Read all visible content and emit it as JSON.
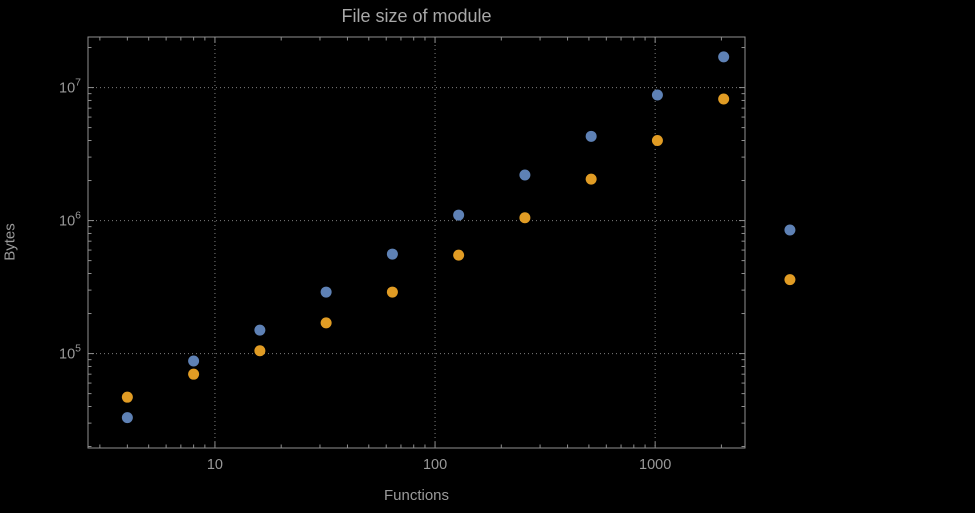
{
  "chart_data": {
    "type": "scatter",
    "title": "File size of module",
    "xlabel": "Functions",
    "ylabel": "Bytes",
    "x_scale": "log",
    "y_scale": "log",
    "grid": "dotted-at-major-ticks",
    "legend": "none",
    "x_ticks": [
      {
        "label": "10",
        "value": 10
      },
      {
        "label": "100",
        "value": 100
      },
      {
        "label": "1000",
        "value": 1000
      }
    ],
    "y_ticks": [
      {
        "base": "10",
        "exp": "5",
        "value": 100000
      },
      {
        "base": "10",
        "exp": "6",
        "value": 1000000
      },
      {
        "base": "10",
        "exp": "7",
        "value": 10000000
      }
    ],
    "xlim": [
      2.65,
      2560
    ],
    "ylim": [
      19500,
      24000000
    ],
    "series": [
      {
        "name": "series-blue",
        "color": "#5e81b5",
        "points": [
          [
            4,
            33000
          ],
          [
            8,
            88000
          ],
          [
            16,
            150000
          ],
          [
            32,
            290000
          ],
          [
            64,
            560000
          ],
          [
            128,
            1100000
          ],
          [
            256,
            2200000
          ],
          [
            512,
            4300000
          ],
          [
            1024,
            8800000
          ],
          [
            2048,
            17000000
          ],
          [
            4096,
            850000
          ]
        ]
      },
      {
        "name": "series-orange",
        "color": "#e19c24",
        "points": [
          [
            4,
            47000
          ],
          [
            8,
            70000
          ],
          [
            16,
            105000
          ],
          [
            32,
            170000
          ],
          [
            64,
            290000
          ],
          [
            128,
            550000
          ],
          [
            256,
            1050000
          ],
          [
            512,
            2050000
          ],
          [
            1024,
            4000000
          ],
          [
            2048,
            8200000
          ],
          [
            4096,
            360000
          ]
        ]
      }
    ],
    "colors": {
      "background": "#000000",
      "frame": "#8f8f8f",
      "grid": "#7d7d7d",
      "tick_text": "#999999",
      "title_text": "#a8a8a8"
    }
  }
}
